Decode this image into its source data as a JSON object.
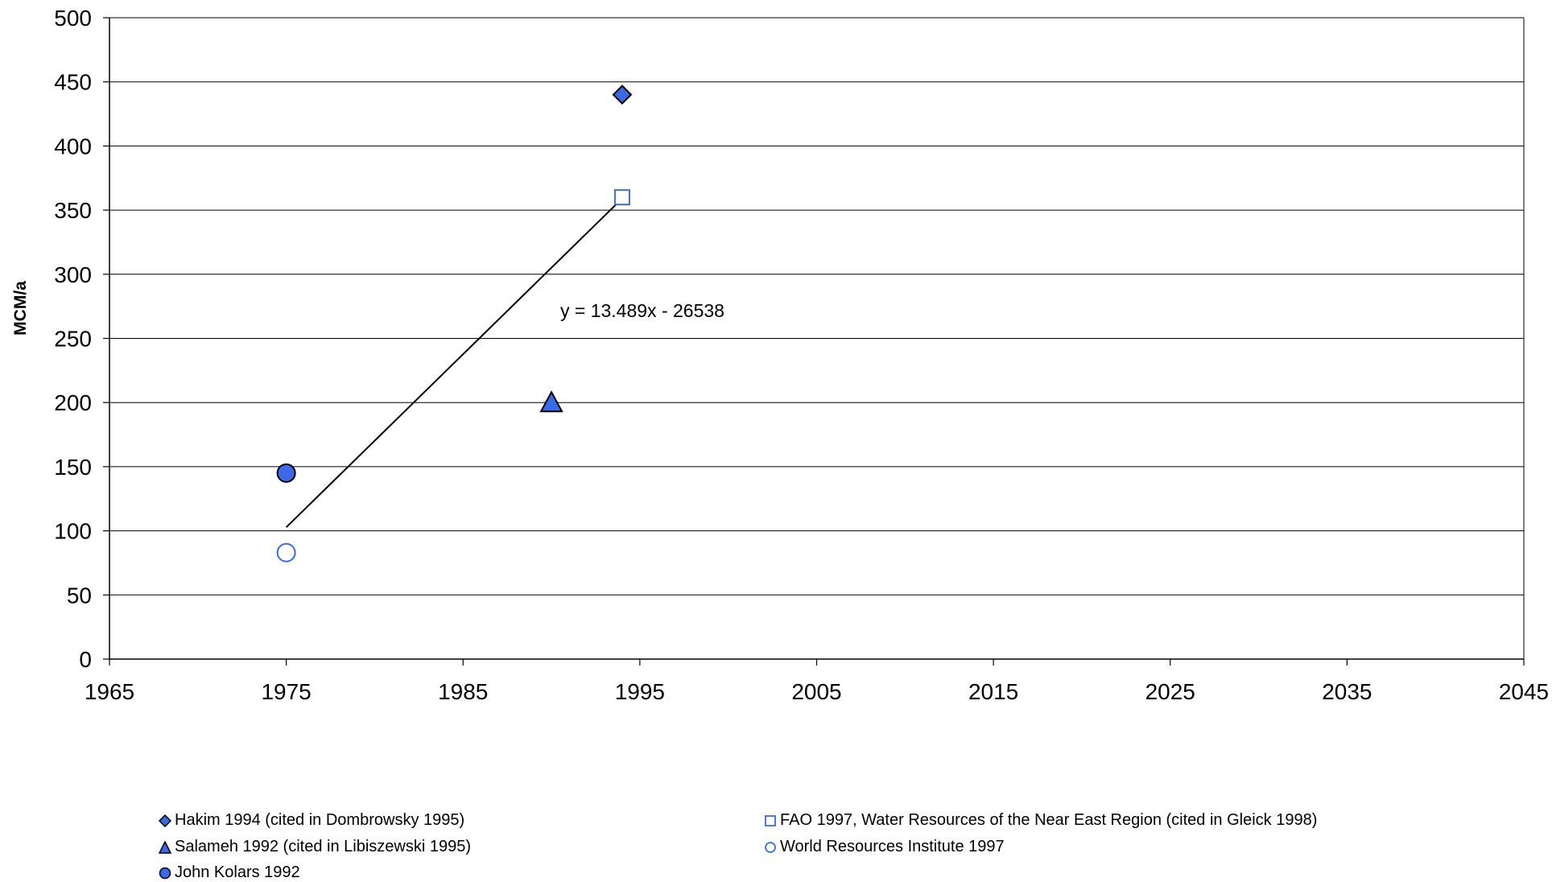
{
  "chart_data": {
    "type": "scatter",
    "title": "",
    "xlabel": "",
    "ylabel": "MCM/a",
    "xlim": [
      1965,
      2045
    ],
    "ylim": [
      0,
      500
    ],
    "x_ticks": [
      "1965",
      "1975",
      "1985",
      "1995",
      "2005",
      "2015",
      "2025",
      "2035",
      "2045"
    ],
    "y_ticks": [
      "0",
      "50",
      "100",
      "150",
      "200",
      "250",
      "300",
      "350",
      "400",
      "450",
      "500"
    ],
    "grid": "horizontal",
    "legend_position": "bottom",
    "series": [
      {
        "name": "Hakim 1994 (cited in Dombrowsky 1995)",
        "marker": "diamond",
        "filled": true,
        "points": [
          [
            1994,
            440
          ]
        ]
      },
      {
        "name": "FAO 1997, Water Resources of the Near East Region (cited in Gleick 1998)",
        "marker": "square",
        "filled": false,
        "points": [
          [
            1994,
            360
          ]
        ]
      },
      {
        "name": "Salameh 1992 (cited in Libiszewski 1995)",
        "marker": "triangle",
        "filled": true,
        "points": [
          [
            1990,
            200
          ]
        ]
      },
      {
        "name": "World Resources Institute 1997",
        "marker": "circle",
        "filled": false,
        "points": [
          [
            1975,
            83
          ]
        ]
      },
      {
        "name": "John Kolars 1992",
        "marker": "circle",
        "filled": true,
        "points": [
          [
            1975,
            145
          ]
        ]
      }
    ],
    "trendline": {
      "label": "y = 13.489x - 26538",
      "slope": 13.489,
      "intercept": -26538,
      "x_range": [
        1975,
        1994
      ]
    },
    "colors": {
      "filled_marker": "#3b6ae8",
      "open_marker": "#3b6ae8",
      "grid": "#000000",
      "axis": "#000000"
    }
  }
}
